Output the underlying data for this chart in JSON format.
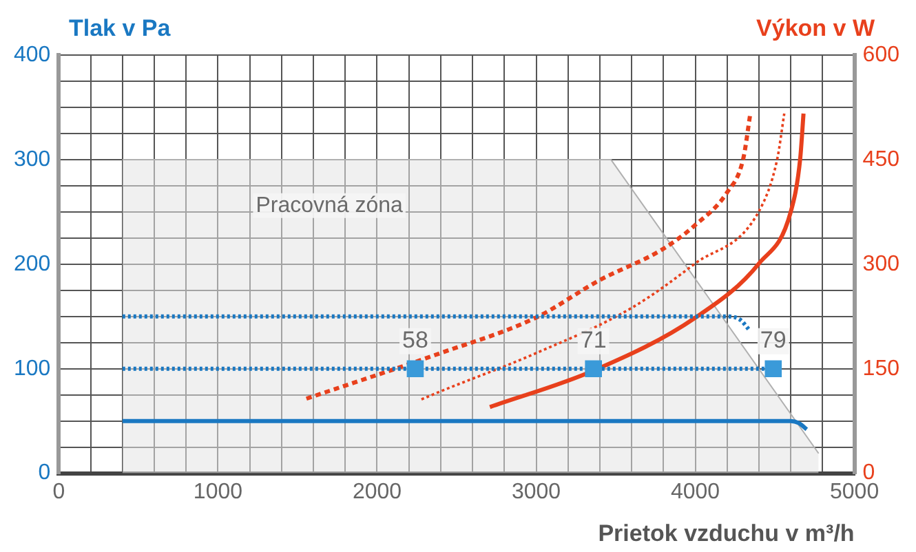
{
  "chart_data": {
    "type": "line",
    "ylabel": "Tlak v Pa",
    "y2label": "Výkon v W",
    "xlabel": "Prietok vzduchu v m³/h",
    "xlim": [
      0,
      5000
    ],
    "xticks": [
      0,
      {
        "value": 200,
        "label": null
      },
      {
        "value": 400,
        "label": null
      },
      {
        "value": 600,
        "label": null
      },
      {
        "value": 800,
        "label": null
      },
      1000,
      {
        "value": 1200,
        "label": null
      },
      {
        "value": 1400,
        "label": null
      },
      {
        "value": 1600,
        "label": null
      },
      {
        "value": 1800,
        "label": null
      },
      2000,
      {
        "value": 2200,
        "label": null
      },
      {
        "value": 2400,
        "label": null
      },
      {
        "value": 2600,
        "label": null
      },
      {
        "value": 2800,
        "label": null
      },
      3000,
      {
        "value": 3200,
        "label": null
      },
      {
        "value": 3400,
        "label": null
      },
      {
        "value": 3600,
        "label": null
      },
      {
        "value": 3800,
        "label": null
      },
      4000,
      {
        "value": 4200,
        "label": null
      },
      {
        "value": 4400,
        "label": null
      },
      {
        "value": 4600,
        "label": null
      },
      {
        "value": 4800,
        "label": null
      },
      5000
    ],
    "ylim": [
      0,
      400
    ],
    "yticks": [
      0,
      {
        "value": 25,
        "label": null
      },
      {
        "value": 50,
        "label": null
      },
      {
        "value": 75,
        "label": null
      },
      100,
      {
        "value": 125,
        "label": null
      },
      {
        "value": 150,
        "label": null
      },
      {
        "value": 175,
        "label": null
      },
      200,
      {
        "value": 225,
        "label": null
      },
      {
        "value": 250,
        "label": null
      },
      {
        "value": 275,
        "label": null
      },
      300,
      {
        "value": 325,
        "label": null
      },
      {
        "value": 350,
        "label": null
      },
      {
        "value": 375,
        "label": null
      },
      400
    ],
    "y2lim": [
      0,
      600
    ],
    "y2ticks": [
      0,
      150,
      300,
      450,
      600
    ],
    "grid": true,
    "legend": false,
    "marker": "none",
    "annotations": [
      "Pracovná zóna",
      {
        "text": "58",
        "x": 2240,
        "y": 100
      },
      {
        "text": "71",
        "x": 3360,
        "y": 100
      },
      {
        "text": "79",
        "x": 4490,
        "y": 100
      }
    ],
    "series": [
      {
        "type": "area",
        "color": "#e4e4e4",
        "x": [
          400,
          3470,
          4775
        ],
        "values": [
          300,
          300,
          19
        ]
      },
      {
        "color": "#1a78c2",
        "line_style": "solid",
        "x": [
          400,
          4600,
          4650,
          4700
        ],
        "values": [
          50,
          50,
          48,
          42
        ]
      },
      {
        "color": "#1a78c2",
        "line_style": "dotted",
        "x": [
          400,
          4530
        ],
        "values": [
          100,
          100
        ]
      },
      {
        "color": "#1a78c2",
        "line_style": "dotted",
        "x": [
          400,
          4200,
          4280,
          4340
        ],
        "values": [
          150,
          150,
          147,
          137
        ]
      },
      {
        "color": "#e8401c",
        "axis": "y2",
        "line_style": "dashed",
        "x": [
          1556,
          2394,
          2996,
          3398,
          3799,
          3999,
          4200,
          4301,
          4345
        ],
        "values": [
          107,
          172,
          223,
          277,
          322,
          356,
          403,
          451,
          515
        ]
      },
      {
        "color": "#e8401c",
        "axis": "y2",
        "line_style": "dotted",
        "x": [
          2279,
          2394,
          2996,
          3598,
          3999,
          4400,
          4515,
          4559
        ],
        "values": [
          106,
          117,
          172,
          237,
          301,
          376,
          451,
          516
        ]
      },
      {
        "color": "#e8401c",
        "axis": "y2",
        "line_style": "solid",
        "x": [
          2709,
          3368,
          3999,
          4400,
          4601,
          4659,
          4680
        ],
        "values": [
          95,
          148,
          223,
          301,
          376,
          451,
          516
        ]
      },
      {
        "type": "scatter",
        "color": "#3a9ad9",
        "marker": "square",
        "x": [
          2240,
          3360,
          4490
        ],
        "values": [
          100,
          100,
          100
        ]
      }
    ]
  }
}
